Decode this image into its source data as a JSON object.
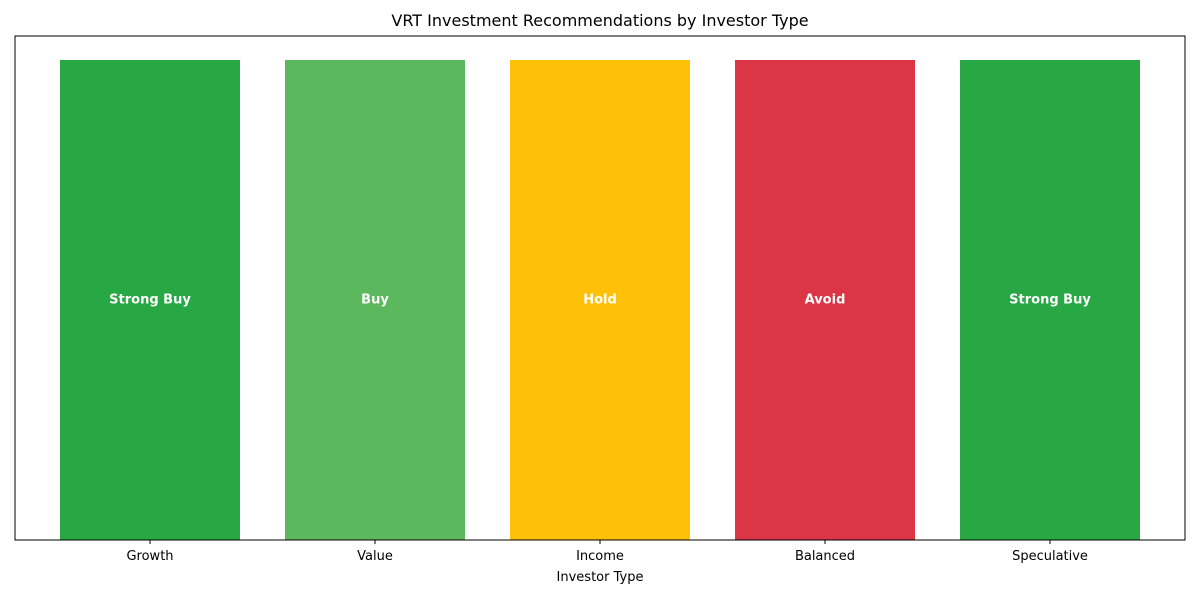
{
  "chart_data": {
    "type": "bar",
    "title": "VRT Investment Recommendations by Investor Type",
    "xlabel": "Investor Type",
    "ylabel": "",
    "categories": [
      "Growth",
      "Value",
      "Income",
      "Balanced",
      "Speculative"
    ],
    "values": [
      1,
      1,
      1,
      1,
      1
    ],
    "ylim": [
      0,
      1.05
    ],
    "bar_labels": [
      "Strong Buy",
      "Buy",
      "Hold",
      "Avoid",
      "Strong Buy"
    ],
    "bar_colors": [
      "#28a745",
      "#5cb85c",
      "#ffc107",
      "#dc3545",
      "#28a745"
    ],
    "grid": false,
    "show_y_ticks": false
  }
}
